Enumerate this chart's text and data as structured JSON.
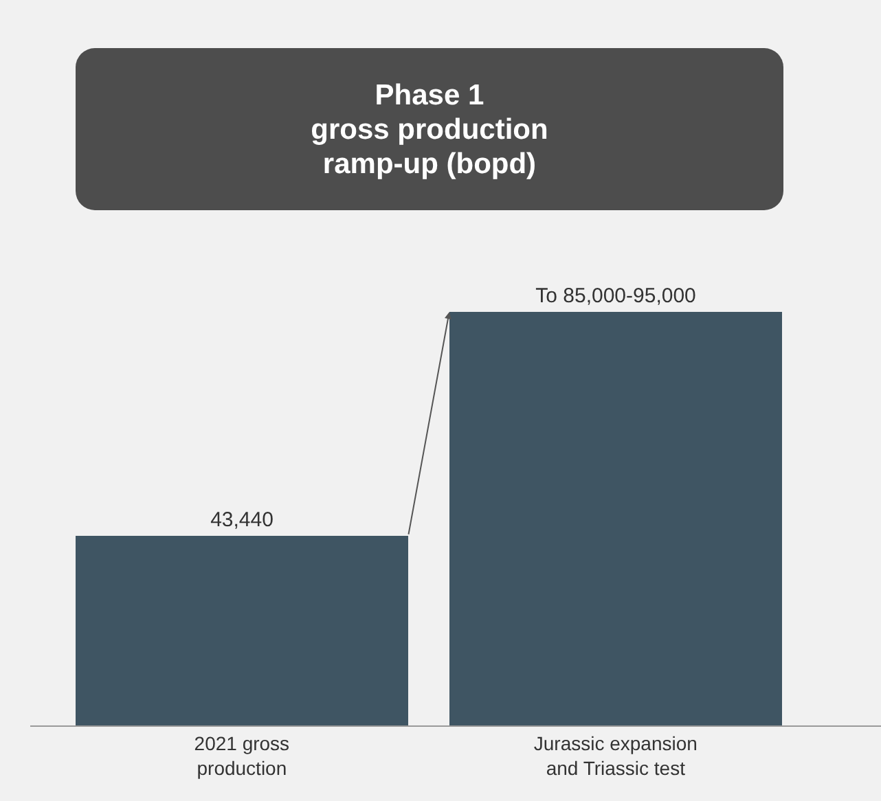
{
  "chart_data": {
    "type": "bar",
    "title": "Phase 1\ngross production\nramp-up (bopd)",
    "categories": [
      "2021 gross\nproduction",
      "Jurassic expansion\nand Triassic test"
    ],
    "values": [
      43440,
      95000
    ],
    "value_labels": [
      "43,440",
      "To 85,000-95,000"
    ],
    "color": "#3f5563"
  }
}
